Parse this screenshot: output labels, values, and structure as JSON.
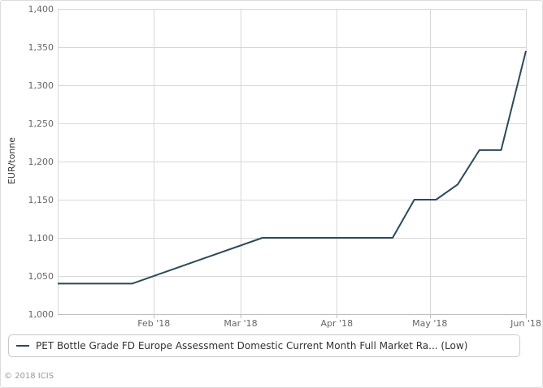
{
  "chart_data": {
    "type": "line",
    "ylabel": "EUR/tonne",
    "xlabel": "",
    "ylim": [
      1000,
      1400
    ],
    "y_ticks": [
      1000,
      1050,
      1100,
      1150,
      1200,
      1250,
      1300,
      1350,
      1400
    ],
    "y_tick_labels": [
      "1,000",
      "1,050",
      "1,100",
      "1,150",
      "1,200",
      "1,250",
      "1,300",
      "1,350",
      "1,400"
    ],
    "xlim": [
      "2018-01-01",
      "2018-06-01"
    ],
    "x_ticks": [
      {
        "date": "2018-02-01",
        "label": "Feb '18"
      },
      {
        "date": "2018-03-01",
        "label": "Mar '18"
      },
      {
        "date": "2018-04-01",
        "label": "Apr '18"
      },
      {
        "date": "2018-05-01",
        "label": "May '18"
      },
      {
        "date": "2018-06-01",
        "label": "Jun '18"
      }
    ],
    "grid": true,
    "legend_position": "bottom",
    "series": [
      {
        "name": "PET Bottle Grade FD Europe Assessment Domestic Current Month Full Market Ra... (Low)",
        "color": "#2d4a5a",
        "points": [
          {
            "x": "2018-01-01",
            "y": 1040
          },
          {
            "x": "2018-01-25",
            "y": 1040
          },
          {
            "x": "2018-03-08",
            "y": 1100
          },
          {
            "x": "2018-04-19",
            "y": 1100
          },
          {
            "x": "2018-04-26",
            "y": 1150
          },
          {
            "x": "2018-05-03",
            "y": 1150
          },
          {
            "x": "2018-05-10",
            "y": 1170
          },
          {
            "x": "2018-05-17",
            "y": 1215
          },
          {
            "x": "2018-05-24",
            "y": 1215
          },
          {
            "x": "2018-06-01",
            "y": 1345
          }
        ]
      }
    ]
  },
  "credits": "© 2018 ICIS"
}
